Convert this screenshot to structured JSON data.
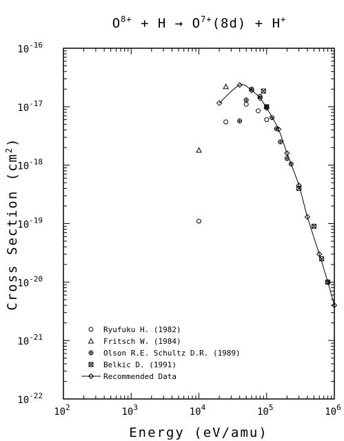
{
  "chart_data": {
    "type": "scatter",
    "title": {
      "pre": "O",
      "pre_sup": "8+",
      "mid": " + H → O",
      "mid_sup": "7+",
      "mid2": "(8d) + H",
      "post_sup": "+"
    },
    "xlabel": "Energy (eV/amu)",
    "ylabel": {
      "text": "Cross Section (cm",
      "sup": "2",
      "close": ")"
    },
    "x_scale": "log",
    "y_scale": "log",
    "xlim": [
      100,
      1000000
    ],
    "ylim": [
      1e-22,
      1e-16
    ],
    "x_ticks": [
      {
        "base": "10",
        "exp": "2"
      },
      {
        "base": "10",
        "exp": "3"
      },
      {
        "base": "10",
        "exp": "4"
      },
      {
        "base": "10",
        "exp": "5"
      },
      {
        "base": "10",
        "exp": "6"
      }
    ],
    "y_ticks": [
      {
        "base": "10",
        "exp": "-22"
      },
      {
        "base": "10",
        "exp": "-21"
      },
      {
        "base": "10",
        "exp": "-20"
      },
      {
        "base": "10",
        "exp": "-19"
      },
      {
        "base": "10",
        "exp": "-18"
      },
      {
        "base": "10",
        "exp": "-17"
      },
      {
        "base": "10",
        "exp": "-16"
      }
    ],
    "grid": false,
    "legend_position": "bottom-left",
    "series": [
      {
        "name": "Ryufuku H. (1982)",
        "marker": "circle",
        "points": [
          [
            10000,
            1.1e-19
          ],
          [
            25000,
            5.5e-18
          ],
          [
            50000,
            1.1e-17
          ],
          [
            75000,
            8.5e-18
          ],
          [
            100000,
            6e-18
          ]
        ]
      },
      {
        "name": "Fritsch W. (1984)",
        "marker": "triangle",
        "points": [
          [
            10000,
            1.8e-18
          ],
          [
            25000,
            2.2e-17
          ]
        ]
      },
      {
        "name": "Olson R.E. Schultz D.R. (1989)",
        "marker": "circle-plus",
        "points": [
          [
            40000,
            5.7e-18
          ],
          [
            50000,
            1.3e-17
          ],
          [
            60000,
            2e-17
          ],
          [
            80000,
            1.5e-17
          ],
          [
            100000,
            1e-17
          ],
          [
            120000,
            6.5e-18
          ],
          [
            140000,
            4.2e-18
          ],
          [
            160000,
            2.5e-18
          ],
          [
            200000,
            1.3e-18
          ],
          [
            230000,
            1.05e-18
          ]
        ]
      },
      {
        "name": "Belkic D. (1991)",
        "marker": "x-box",
        "points": [
          [
            90000,
            1.85e-17
          ],
          [
            100000,
            1e-17
          ],
          [
            300000,
            4e-19
          ],
          [
            500000,
            9e-20
          ],
          [
            650000,
            2.5e-20
          ],
          [
            800000,
            1e-20
          ]
        ]
      },
      {
        "name": "Recommended Data",
        "marker": "diamond",
        "line": true,
        "points": [
          [
            20000,
            1.15e-17
          ],
          [
            40000,
            2.35e-17
          ],
          [
            60000,
            1.9e-17
          ],
          [
            80000,
            1.4e-17
          ],
          [
            100000,
            9.5e-18
          ],
          [
            150000,
            4.1e-18
          ],
          [
            200000,
            1.6e-18
          ],
          [
            300000,
            4.5e-19
          ],
          [
            400000,
            1.3e-19
          ],
          [
            600000,
            3e-20
          ],
          [
            800000,
            1e-20
          ],
          [
            1000000,
            4e-21
          ]
        ]
      }
    ]
  }
}
